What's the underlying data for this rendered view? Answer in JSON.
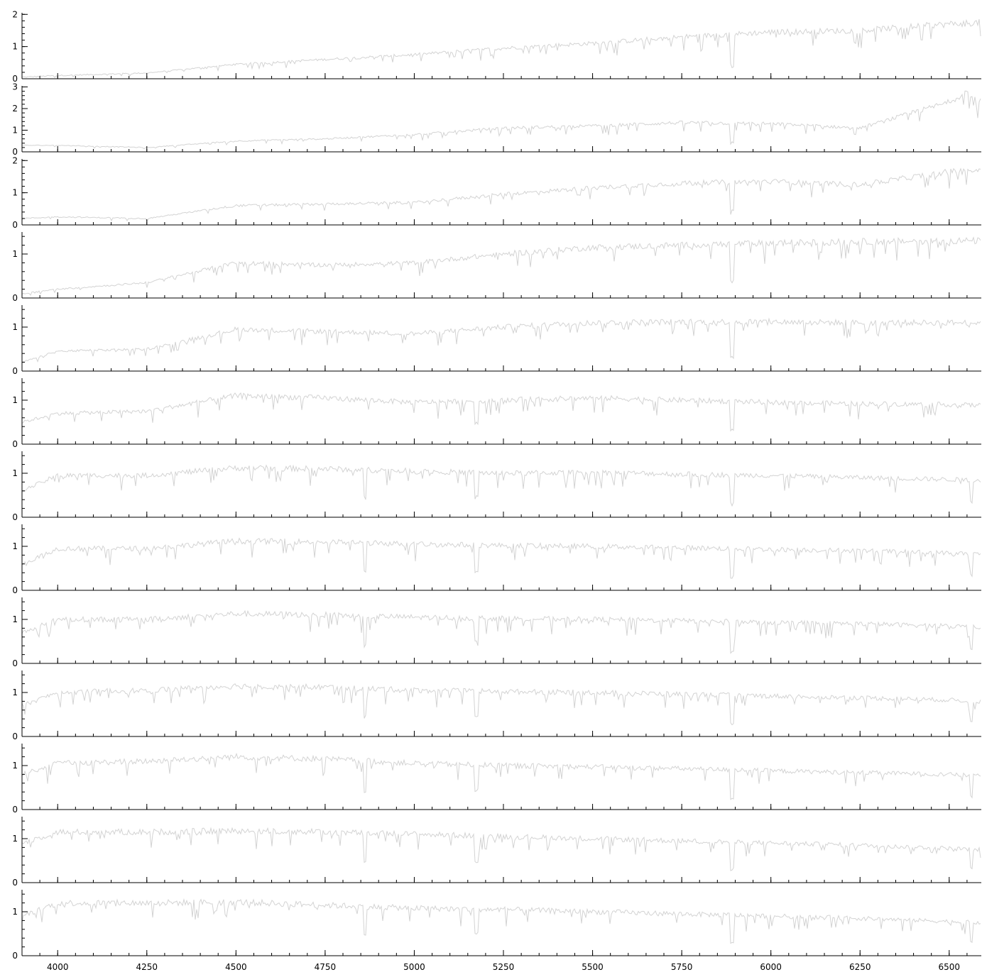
{
  "chart_data": {
    "type": "line",
    "xlim": [
      3900,
      6590
    ],
    "x_ticks": [
      4000,
      4250,
      4500,
      4750,
      5000,
      5250,
      5500,
      5750,
      6000,
      6250,
      6500
    ],
    "x_tick_labels": [
      "4000",
      "4250",
      "4500",
      "4750",
      "5000",
      "5250",
      "5500",
      "5750",
      "6000",
      "6250",
      "6500"
    ],
    "line_color": "#d3d3d3",
    "axis_color": "#000000",
    "grid": false,
    "panels": [
      {
        "ylim": [
          0,
          2.05
        ],
        "y_ticks": [
          0,
          1,
          2
        ],
        "y_tick_labels": [
          "0",
          "1",
          "2"
        ],
        "series": {
          "x": [
            3900,
            4000,
            4250,
            4500,
            4750,
            5000,
            5250,
            5500,
            5750,
            6000,
            6250,
            6500,
            6590
          ],
          "y": [
            0.05,
            0.1,
            0.18,
            0.45,
            0.6,
            0.75,
            0.95,
            1.1,
            1.3,
            1.45,
            1.5,
            1.7,
            1.75
          ]
        }
      },
      {
        "ylim": [
          0,
          3.05
        ],
        "y_ticks": [
          0,
          1,
          2,
          3
        ],
        "y_tick_labels": [
          "0",
          "1",
          "2",
          "3"
        ],
        "series": {
          "x": [
            3900,
            4000,
            4250,
            4500,
            4750,
            5000,
            5250,
            5500,
            5750,
            6000,
            6250,
            6500,
            6550,
            6590
          ],
          "y": [
            0.3,
            0.3,
            0.2,
            0.5,
            0.6,
            0.8,
            1.1,
            1.2,
            1.35,
            1.3,
            1.1,
            2.3,
            2.8,
            2.3
          ]
        }
      },
      {
        "ylim": [
          0,
          2.05
        ],
        "y_ticks": [
          0,
          1,
          2
        ],
        "y_tick_labels": [
          "0",
          "1",
          "2"
        ],
        "series": {
          "x": [
            3900,
            4000,
            4250,
            4500,
            4750,
            5000,
            5250,
            5500,
            5750,
            6000,
            6250,
            6500,
            6590
          ],
          "y": [
            0.2,
            0.25,
            0.2,
            0.6,
            0.65,
            0.7,
            0.95,
            1.15,
            1.3,
            1.35,
            1.25,
            1.65,
            1.7
          ]
        }
      },
      {
        "ylim": [
          0,
          1.5
        ],
        "y_ticks": [
          0,
          1
        ],
        "y_tick_labels": [
          "0",
          "1"
        ],
        "series": {
          "x": [
            3900,
            4000,
            4250,
            4500,
            4750,
            5000,
            5250,
            5500,
            5750,
            6000,
            6250,
            6500,
            6590
          ],
          "y": [
            0.1,
            0.2,
            0.35,
            0.8,
            0.75,
            0.8,
            1.0,
            1.15,
            1.2,
            1.25,
            1.28,
            1.3,
            1.3
          ]
        }
      },
      {
        "ylim": [
          0,
          1.5
        ],
        "y_ticks": [
          0,
          1
        ],
        "y_tick_labels": [
          "0",
          "1"
        ],
        "series": {
          "x": [
            3900,
            4000,
            4250,
            4500,
            4750,
            5000,
            5250,
            5500,
            5750,
            6000,
            6250,
            6500,
            6590
          ],
          "y": [
            0.2,
            0.45,
            0.5,
            0.95,
            0.9,
            0.85,
            1.0,
            1.1,
            1.12,
            1.12,
            1.1,
            1.1,
            1.1
          ]
        }
      },
      {
        "ylim": [
          0,
          1.5
        ],
        "y_ticks": [
          0,
          1
        ],
        "y_tick_labels": [
          "0",
          "1"
        ],
        "series": {
          "x": [
            3900,
            4000,
            4250,
            4500,
            4750,
            5000,
            5250,
            5500,
            5750,
            6000,
            6250,
            6500,
            6590
          ],
          "y": [
            0.5,
            0.7,
            0.75,
            1.1,
            1.05,
            0.95,
            1.0,
            1.05,
            1.0,
            0.95,
            0.92,
            0.9,
            0.88
          ]
        }
      },
      {
        "ylim": [
          0,
          1.5
        ],
        "y_ticks": [
          0,
          1
        ],
        "y_tick_labels": [
          "0",
          "1"
        ],
        "series": {
          "x": [
            3900,
            4000,
            4250,
            4500,
            4750,
            5000,
            5250,
            5500,
            5750,
            6000,
            6250,
            6500,
            6590
          ],
          "y": [
            0.6,
            0.95,
            0.95,
            1.12,
            1.1,
            1.05,
            1.0,
            1.02,
            0.98,
            0.95,
            0.9,
            0.86,
            0.84
          ]
        }
      },
      {
        "ylim": [
          0,
          1.5
        ],
        "y_ticks": [
          0,
          1
        ],
        "y_tick_labels": [
          "0",
          "1"
        ],
        "series": {
          "x": [
            3900,
            4000,
            4250,
            4500,
            4750,
            5000,
            5250,
            5500,
            5750,
            6000,
            6250,
            6500,
            6590
          ],
          "y": [
            0.6,
            0.95,
            0.95,
            1.12,
            1.1,
            1.05,
            1.02,
            1.0,
            0.97,
            0.93,
            0.9,
            0.85,
            0.82
          ]
        }
      },
      {
        "ylim": [
          0,
          1.5
        ],
        "y_ticks": [
          0,
          1
        ],
        "y_tick_labels": [
          "0",
          "1"
        ],
        "series": {
          "x": [
            3900,
            4000,
            4250,
            4500,
            4750,
            5000,
            5250,
            5500,
            5750,
            6000,
            6250,
            6500,
            6590
          ],
          "y": [
            0.7,
            1.0,
            1.0,
            1.13,
            1.1,
            1.05,
            1.02,
            1.0,
            0.97,
            0.93,
            0.9,
            0.85,
            0.82
          ]
        }
      },
      {
        "ylim": [
          0,
          1.5
        ],
        "y_ticks": [
          0,
          1
        ],
        "y_tick_labels": [
          "0",
          "1"
        ],
        "series": {
          "x": [
            3900,
            4000,
            4250,
            4500,
            4750,
            5000,
            5250,
            5500,
            5750,
            6000,
            6250,
            6500,
            6590
          ],
          "y": [
            0.7,
            1.0,
            1.05,
            1.15,
            1.12,
            1.05,
            1.02,
            1.0,
            0.96,
            0.92,
            0.88,
            0.83,
            0.8
          ]
        }
      },
      {
        "ylim": [
          0,
          1.5
        ],
        "y_ticks": [
          0,
          1
        ],
        "y_tick_labels": [
          "0",
          "1"
        ],
        "series": {
          "x": [
            3900,
            4000,
            4250,
            4500,
            4750,
            5000,
            5250,
            5500,
            5750,
            6000,
            6250,
            6500,
            6590
          ],
          "y": [
            0.8,
            1.05,
            1.1,
            1.2,
            1.15,
            1.05,
            1.0,
            0.97,
            0.93,
            0.88,
            0.84,
            0.8,
            0.76
          ]
        }
      },
      {
        "ylim": [
          0,
          1.5
        ],
        "y_ticks": [
          0,
          1
        ],
        "y_tick_labels": [
          "0",
          "1"
        ],
        "series": {
          "x": [
            3900,
            4000,
            4250,
            4500,
            4750,
            5000,
            5250,
            5500,
            5750,
            6000,
            6250,
            6500,
            6590
          ],
          "y": [
            0.9,
            1.15,
            1.15,
            1.18,
            1.15,
            1.1,
            1.05,
            1.0,
            0.95,
            0.9,
            0.85,
            0.78,
            0.75
          ]
        }
      },
      {
        "ylim": [
          0,
          1.5
        ],
        "y_ticks": [
          0,
          1
        ],
        "y_tick_labels": [
          "0",
          "1"
        ],
        "series": {
          "x": [
            3900,
            4000,
            4250,
            4500,
            4750,
            5000,
            5250,
            5500,
            5750,
            6000,
            6250,
            6500,
            6590
          ],
          "y": [
            0.9,
            1.2,
            1.2,
            1.22,
            1.15,
            1.08,
            1.05,
            1.0,
            0.95,
            0.9,
            0.85,
            0.78,
            0.75
          ]
        }
      }
    ]
  }
}
